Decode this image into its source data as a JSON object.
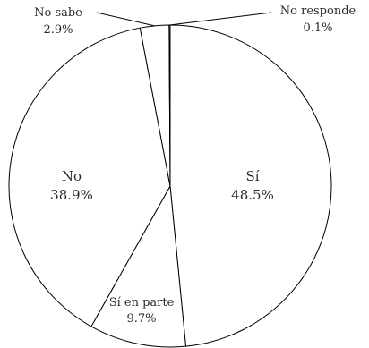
{
  "chart_data": {
    "type": "pie",
    "title": "",
    "start": "top, clockwise",
    "fill_color": "#ffffff",
    "stroke_color": "#000000",
    "slices": [
      {
        "label": "Sí",
        "value": 48.5,
        "value_label": "48.5%"
      },
      {
        "label": "Sí en parte",
        "value": 9.7,
        "value_label": "9.7%"
      },
      {
        "label": "No",
        "value": 38.9,
        "value_label": "38.9%"
      },
      {
        "label": "No sabe",
        "value": 2.9,
        "value_label": "2.9%"
      },
      {
        "label": "No responde",
        "value": 0.1,
        "value_label": "0.1%"
      }
    ]
  }
}
